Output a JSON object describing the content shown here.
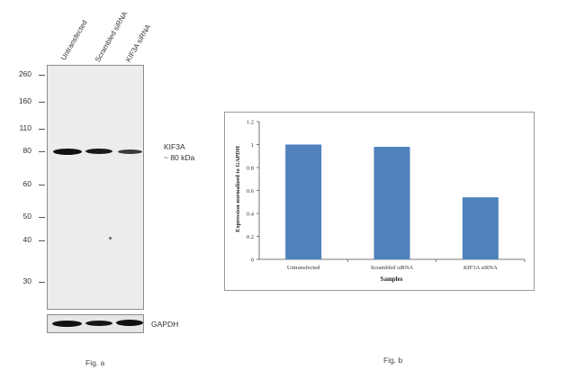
{
  "fig_a": {
    "caption": "Fig. a",
    "lanes": [
      "Untransfected",
      "Scrambled siRNA",
      "KIF3A siRNA"
    ],
    "markers": [
      "260",
      "160",
      "110",
      "80",
      "60",
      "50",
      "40",
      "30"
    ],
    "target_label": "KIF3A",
    "target_size": "~ 80 kDa",
    "loading_label": "GAPDH"
  },
  "fig_b": {
    "caption": "Fig. b"
  },
  "chart_data": {
    "type": "bar",
    "categories": [
      "Untransfected",
      "Scrambled siRNA",
      "KIF3A siRNA"
    ],
    "values": [
      1.0,
      0.98,
      0.54
    ],
    "xlabel": "Samples",
    "ylabel": "Expression normalized to GAPDH",
    "ylim": [
      0,
      1.2
    ],
    "yticks": [
      "0",
      "0.2",
      "0.4",
      "0.6",
      "0.8",
      "1",
      "1.2"
    ],
    "bar_color": "#4f81bd",
    "grid": false,
    "legend": false
  }
}
